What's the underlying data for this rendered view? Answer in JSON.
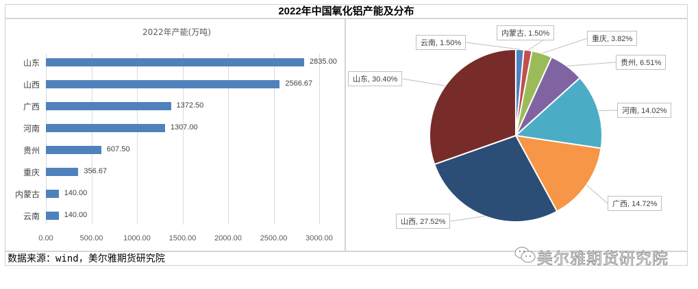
{
  "header": {
    "title": "2022年中国氧化铝产能及分布"
  },
  "footer": {
    "source": "数据来源：wind，美尔雅期货研究院",
    "watermark": "美尔雅期货研究院",
    "watermark_icon": "wechat-icon"
  },
  "colors": {
    "bar": "#4f81bd",
    "gridline": "#d9d9d9",
    "border": "#d4d4d4"
  },
  "bar_chart": {
    "title": "2022年产能(万吨)",
    "ticks": [
      "0.00",
      "500.00",
      "1000.00",
      "1500.00",
      "2000.00",
      "2500.00",
      "3000.00"
    ],
    "rows": [
      {
        "label": "山东",
        "value": 2835.0,
        "display": "2835.00"
      },
      {
        "label": "山西",
        "value": 2566.67,
        "display": "2566.67"
      },
      {
        "label": "广西",
        "value": 1372.5,
        "display": "1372.50"
      },
      {
        "label": "河南",
        "value": 1307.0,
        "display": "1307.00"
      },
      {
        "label": "贵州",
        "value": 607.5,
        "display": "607.50"
      },
      {
        "label": "重庆",
        "value": 356.67,
        "display": "356.67"
      },
      {
        "label": "内蒙古",
        "value": 140.0,
        "display": "140.00"
      },
      {
        "label": "云南",
        "value": 140.0,
        "display": "140.00"
      }
    ]
  },
  "pie_chart": {
    "slices": [
      {
        "label": "云南, 1.50%",
        "name": "云南",
        "pct": 1.5,
        "color": "#4f81bd"
      },
      {
        "label": "内蒙古, 1.50%",
        "name": "内蒙古",
        "pct": 1.5,
        "color": "#c0504d"
      },
      {
        "label": "重庆, 3.82%",
        "name": "重庆",
        "pct": 3.82,
        "color": "#9bbb59"
      },
      {
        "label": "贵州, 6.51%",
        "name": "贵州",
        "pct": 6.51,
        "color": "#8064a2"
      },
      {
        "label": "河南, 14.02%",
        "name": "河南",
        "pct": 14.02,
        "color": "#4bacc6"
      },
      {
        "label": "广西, 14.72%",
        "name": "广西",
        "pct": 14.72,
        "color": "#f79646"
      },
      {
        "label": "山西, 27.52%",
        "name": "山西",
        "pct": 27.52,
        "color": "#2c4d75"
      },
      {
        "label": "山东, 30.40%",
        "name": "山东",
        "pct": 30.4,
        "color": "#772c2a"
      }
    ]
  },
  "chart_data": [
    {
      "type": "bar",
      "orientation": "horizontal",
      "title": "2022年产能(万吨)",
      "categories": [
        "山东",
        "山西",
        "广西",
        "河南",
        "贵州",
        "重庆",
        "内蒙古",
        "云南"
      ],
      "values": [
        2835.0,
        2566.67,
        1372.5,
        1307.0,
        607.5,
        356.67,
        140.0,
        140.0
      ],
      "xlabel": "",
      "ylabel": "",
      "xlim": [
        0,
        3000
      ],
      "xticks": [
        "0.00",
        "500.00",
        "1000.00",
        "1500.00",
        "2000.00",
        "2500.00",
        "3000.00"
      ],
      "grid": "vertical",
      "legend": "none",
      "data_labels": true
    },
    {
      "type": "pie",
      "title": "",
      "categories": [
        "云南",
        "内蒙古",
        "重庆",
        "贵州",
        "河南",
        "广西",
        "山西",
        "山东"
      ],
      "values": [
        1.5,
        1.5,
        3.82,
        6.51,
        14.02,
        14.72,
        27.52,
        30.4
      ],
      "unit": "%",
      "start_angle": "12 o'clock, clockwise",
      "data_labels": [
        "云南, 1.50%",
        "内蒙古, 1.50%",
        "重庆, 3.82%",
        "贵州, 6.51%",
        "河南, 14.02%",
        "广西, 14.72%",
        "山西, 27.52%",
        "山东, 30.40%"
      ],
      "legend": "none"
    }
  ]
}
